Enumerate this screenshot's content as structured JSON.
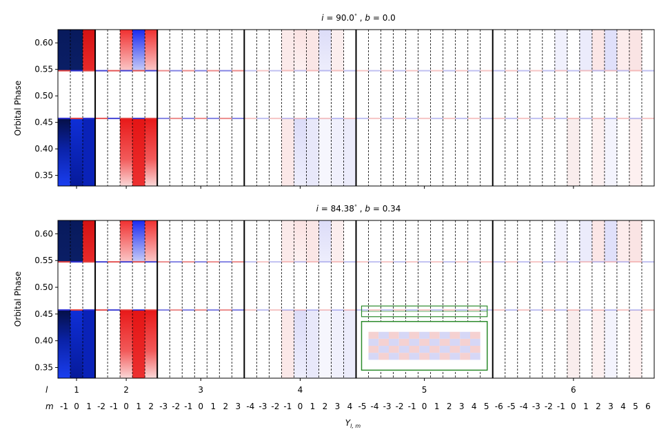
{
  "figure": {
    "xlabel": "Y",
    "xlabel_sub": "l, m",
    "row_l_label": "l",
    "row_m_label": "m"
  },
  "chart_data": [
    {
      "type": "heatmap",
      "title": "i = 90.0°, b = 0.0",
      "title_parts": [
        "i",
        " = 90.0",
        "°",
        " , ",
        "b",
        " = 0.0"
      ],
      "ylabel": "Orbital Phase",
      "ylim": [
        0.33,
        0.625
      ],
      "yticks": [
        0.4,
        0.45,
        0.5,
        0.55,
        0.6,
        0.35
      ],
      "ytick_labels": [
        "0.40",
        "0.45",
        "0.50",
        "0.55",
        "0.60",
        "0.35"
      ],
      "grid": "dashed vertical separators between m columns; solid between l groups"
    },
    {
      "type": "heatmap",
      "title": "i = 84.38°, b = 0.34",
      "title_parts": [
        "i",
        " = 84.38",
        "°",
        " , ",
        "b",
        " = 0.34"
      ],
      "ylabel": "Orbital Phase",
      "ylim": [
        0.33,
        0.625
      ],
      "yticks": [
        0.4,
        0.45,
        0.5,
        0.55,
        0.6,
        0.35
      ],
      "ytick_labels": [
        "0.40",
        "0.45",
        "0.50",
        "0.55",
        "0.60",
        "0.35"
      ],
      "inset": {
        "phase_range": [
          0.445,
          0.465
        ],
        "l": 5
      }
    }
  ],
  "x_axis": {
    "groups": [
      {
        "l": "1",
        "m": [
          "-1",
          "0",
          "1"
        ]
      },
      {
        "l": "2",
        "m": [
          "-2",
          "-1",
          "0",
          "1",
          "2"
        ]
      },
      {
        "l": "3",
        "m": [
          "-3",
          "-2",
          "-1",
          "0",
          "1",
          "2",
          "3"
        ]
      },
      {
        "l": "4",
        "m": [
          "-4",
          "-3",
          "-2",
          "-1",
          "0",
          "1",
          "2",
          "3",
          "4"
        ]
      },
      {
        "l": "5",
        "m": [
          "-5",
          "-4",
          "-3",
          "-2",
          "-1",
          "0",
          "1",
          "2",
          "3",
          "4",
          "5"
        ]
      },
      {
        "l": "6",
        "m": [
          "-6",
          "-5",
          "-4",
          "-3",
          "-2",
          "-1",
          "0",
          "1",
          "2",
          "3",
          "4",
          "5",
          "6"
        ]
      }
    ]
  },
  "colors": {
    "positive": "#d62728",
    "negative": "#1f1fd0",
    "inset_box": "#2a8a2a"
  }
}
